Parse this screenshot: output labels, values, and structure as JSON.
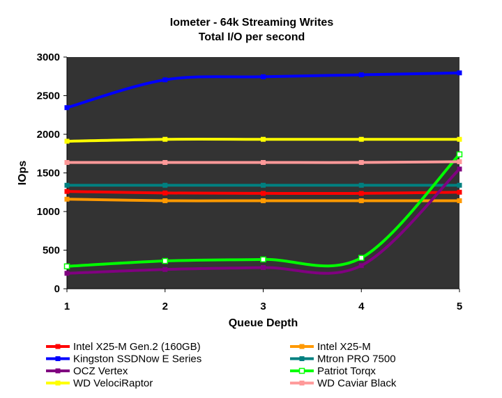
{
  "chart_data": {
    "type": "line",
    "title": "Iometer - 64k Streaming Writes",
    "subtitle": "Total I/O per second",
    "xlabel": "Queue Depth",
    "ylabel": "IOps",
    "x": [
      1,
      2,
      3,
      4,
      5
    ],
    "xlim": [
      1,
      5
    ],
    "ylim": [
      0,
      3000
    ],
    "y_ticks": [
      0,
      500,
      1000,
      1500,
      2000,
      2500,
      3000
    ],
    "plot_background": "#333333",
    "grid": false,
    "legend_position": "bottom",
    "series": [
      {
        "name": "Intel X25-M Gen.2 (160GB)",
        "color": "#ff0000",
        "marker": "square",
        "values": [
          1260,
          1240,
          1235,
          1235,
          1250
        ]
      },
      {
        "name": "Intel X25-M",
        "color": "#ff9900",
        "marker": "square",
        "values": [
          1160,
          1140,
          1140,
          1140,
          1140
        ]
      },
      {
        "name": "Kingston SSDNow E Series",
        "color": "#0000ff",
        "marker": "square",
        "values": [
          2345,
          2705,
          2745,
          2770,
          2795
        ]
      },
      {
        "name": "Mtron PRO 7500",
        "color": "#008080",
        "marker": "square",
        "values": [
          1340,
          1340,
          1340,
          1340,
          1340
        ]
      },
      {
        "name": "OCZ Vertex",
        "color": "#800080",
        "marker": "square",
        "values": [
          200,
          250,
          275,
          300,
          1550
        ]
      },
      {
        "name": "Patriot Torqx",
        "color": "#00ff00",
        "marker": "hollow-square",
        "values": [
          290,
          360,
          380,
          400,
          1740
        ]
      },
      {
        "name": "WD VelociRaptor",
        "color": "#ffff00",
        "marker": "square",
        "values": [
          1910,
          1935,
          1935,
          1935,
          1935
        ]
      },
      {
        "name": "WD Caviar Black",
        "color": "#ff9999",
        "marker": "square",
        "values": [
          1635,
          1635,
          1635,
          1635,
          1645
        ]
      }
    ]
  }
}
